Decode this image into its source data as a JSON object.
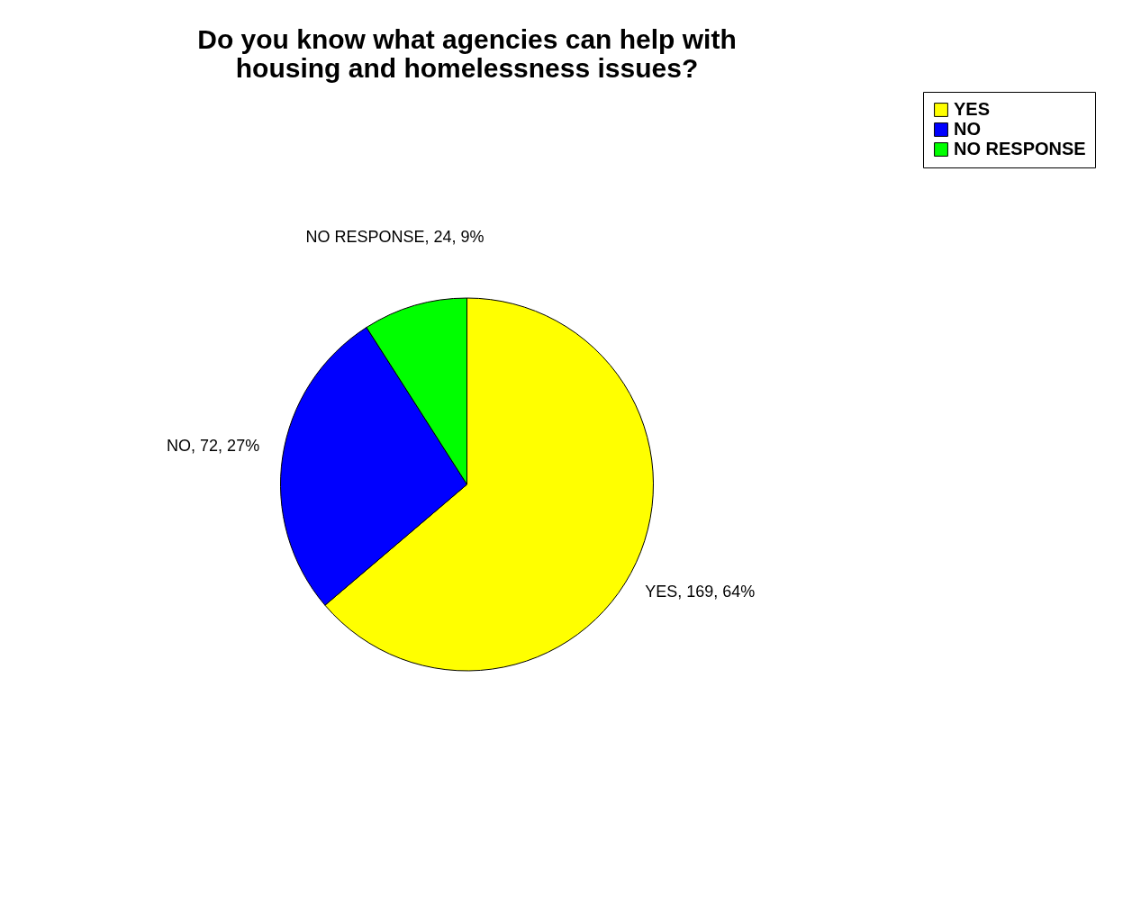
{
  "chart_data": {
    "type": "pie",
    "title": "Do you know what agencies can help with housing and homelessness issues?",
    "categories": [
      "YES",
      "NO",
      "NO RESPONSE"
    ],
    "values": [
      169,
      72,
      24
    ],
    "colors": [
      "#ffff00",
      "#0000ff",
      "#00ff00"
    ],
    "value_labels": [
      "YES, 169, 64%",
      "NO, 72, 27%",
      "NO RESPONSE, 24, 9%"
    ],
    "legend": "right"
  }
}
